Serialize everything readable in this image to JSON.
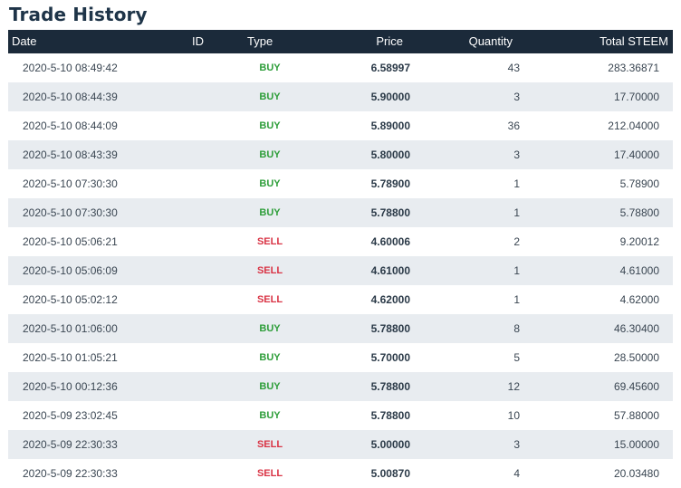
{
  "title": "Trade History",
  "columns": {
    "date": "Date",
    "id": "ID",
    "type": "Type",
    "price": "Price",
    "quantity": "Quantity",
    "total": "Total STEEM"
  },
  "colors": {
    "buy": "#2e9e3a",
    "sell": "#d93344",
    "header_bg": "#1b2a3a"
  },
  "rows": [
    {
      "date": "2020-5-10 08:49:42",
      "type": "BUY",
      "price": "6.58997",
      "quantity": "43",
      "total": "283.36871"
    },
    {
      "date": "2020-5-10 08:44:39",
      "type": "BUY",
      "price": "5.90000",
      "quantity": "3",
      "total": "17.70000"
    },
    {
      "date": "2020-5-10 08:44:09",
      "type": "BUY",
      "price": "5.89000",
      "quantity": "36",
      "total": "212.04000"
    },
    {
      "date": "2020-5-10 08:43:39",
      "type": "BUY",
      "price": "5.80000",
      "quantity": "3",
      "total": "17.40000"
    },
    {
      "date": "2020-5-10 07:30:30",
      "type": "BUY",
      "price": "5.78900",
      "quantity": "1",
      "total": "5.78900"
    },
    {
      "date": "2020-5-10 07:30:30",
      "type": "BUY",
      "price": "5.78800",
      "quantity": "1",
      "total": "5.78800"
    },
    {
      "date": "2020-5-10 05:06:21",
      "type": "SELL",
      "price": "4.60006",
      "quantity": "2",
      "total": "9.20012"
    },
    {
      "date": "2020-5-10 05:06:09",
      "type": "SELL",
      "price": "4.61000",
      "quantity": "1",
      "total": "4.61000"
    },
    {
      "date": "2020-5-10 05:02:12",
      "type": "SELL",
      "price": "4.62000",
      "quantity": "1",
      "total": "4.62000"
    },
    {
      "date": "2020-5-10 01:06:00",
      "type": "BUY",
      "price": "5.78800",
      "quantity": "8",
      "total": "46.30400"
    },
    {
      "date": "2020-5-10 01:05:21",
      "type": "BUY",
      "price": "5.70000",
      "quantity": "5",
      "total": "28.50000"
    },
    {
      "date": "2020-5-10 00:12:36",
      "type": "BUY",
      "price": "5.78800",
      "quantity": "12",
      "total": "69.45600"
    },
    {
      "date": "2020-5-09 23:02:45",
      "type": "BUY",
      "price": "5.78800",
      "quantity": "10",
      "total": "57.88000"
    },
    {
      "date": "2020-5-09 22:30:33",
      "type": "SELL",
      "price": "5.00000",
      "quantity": "3",
      "total": "15.00000"
    },
    {
      "date": "2020-5-09 22:30:33",
      "type": "SELL",
      "price": "5.00870",
      "quantity": "4",
      "total": "20.03480"
    }
  ]
}
